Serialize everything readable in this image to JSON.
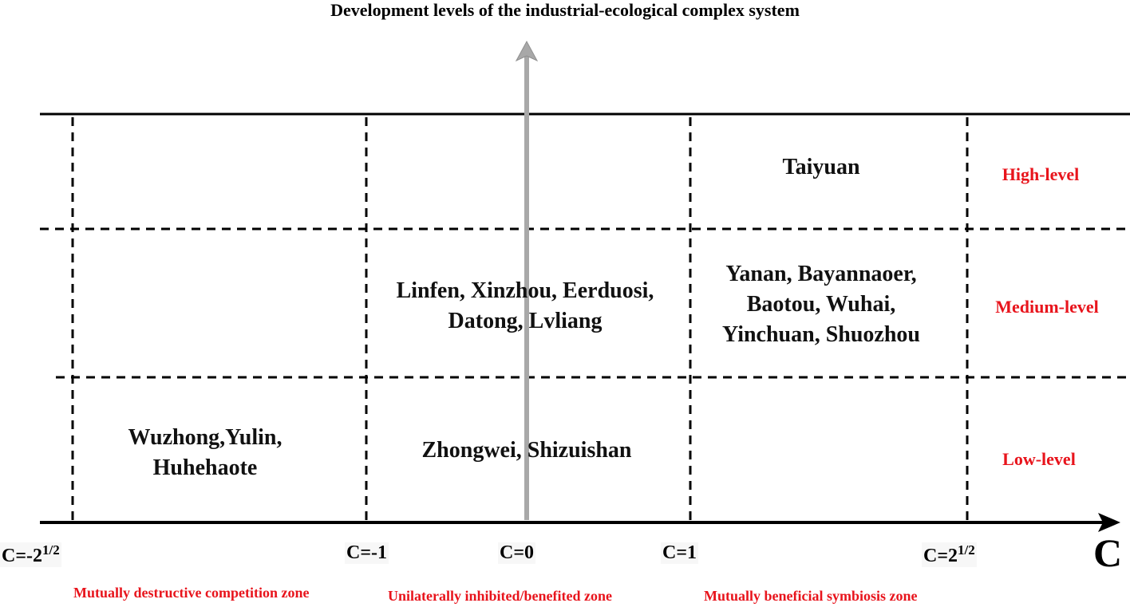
{
  "title": "Development levels of the industrial-ecological complex system",
  "axis_label": "C",
  "ticks": {
    "neg_sqrt2_base": "C=-2",
    "neg_sqrt2_exp": "1/2",
    "neg_one": "C=-1",
    "zero": "C=0",
    "one": "C=1",
    "sqrt2_base": "C=2",
    "sqrt2_exp": "1/2"
  },
  "zones": {
    "destructive": "Mutually destructive competition zone",
    "unilateral": "Unilaterally inhibited/benefited zone",
    "symbiosis": "Mutually beneficial symbiosis zone"
  },
  "levels": {
    "high": "High-level",
    "medium": "Medium-level",
    "low": "Low-level"
  },
  "cells": {
    "high_symbiosis": "Taiyuan",
    "medium_unilateral_line1": "Linfen, Xinzhou, Eerduosi,",
    "medium_unilateral_line2": "Datong, Lvliang",
    "medium_symbiosis_line1": "Yanan, Bayannaoer,",
    "medium_symbiosis_line2": "Baotou, Wuhai,",
    "medium_symbiosis_line3": "Yinchuan, Shuozhou",
    "low_destructive_line1": "Wuzhong,Yulin,",
    "low_destructive_line2": "Huhehaote",
    "low_unilateral": "Zhongwei, Shizuishan"
  },
  "colors": {
    "accent_red": "#e8141c",
    "vertical_axis_gray": "#a8a8a8"
  }
}
